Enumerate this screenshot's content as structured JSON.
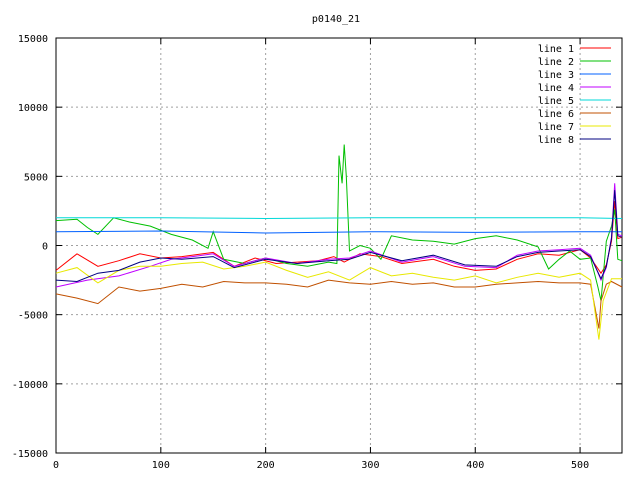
{
  "chart_data": {
    "type": "line",
    "title": "p0140_21",
    "xlabel": "",
    "ylabel": "",
    "xlim": [
      0,
      540
    ],
    "ylim": [
      -15000,
      15000
    ],
    "grid": true,
    "legend_position": "top-right",
    "xticks": [
      0,
      100,
      200,
      300,
      400,
      500
    ],
    "yticks": [
      -15000,
      -10000,
      -5000,
      0,
      5000,
      10000,
      15000
    ],
    "series": [
      {
        "name": "line 1",
        "color": "#ff0000",
        "points": [
          [
            0,
            -1800
          ],
          [
            20,
            -600
          ],
          [
            40,
            -1500
          ],
          [
            60,
            -1100
          ],
          [
            80,
            -600
          ],
          [
            100,
            -900
          ],
          [
            120,
            -800
          ],
          [
            150,
            -500
          ],
          [
            170,
            -1500
          ],
          [
            190,
            -900
          ],
          [
            210,
            -1300
          ],
          [
            230,
            -1200
          ],
          [
            250,
            -1100
          ],
          [
            265,
            -800
          ],
          [
            275,
            -1200
          ],
          [
            290,
            -600
          ],
          [
            310,
            -800
          ],
          [
            330,
            -1300
          ],
          [
            360,
            -1000
          ],
          [
            380,
            -1500
          ],
          [
            400,
            -1800
          ],
          [
            420,
            -1700
          ],
          [
            440,
            -1000
          ],
          [
            460,
            -600
          ],
          [
            480,
            -700
          ],
          [
            500,
            -300
          ],
          [
            510,
            -900
          ],
          [
            520,
            -2000
          ],
          [
            525,
            -1400
          ],
          [
            530,
            300
          ],
          [
            533,
            3200
          ],
          [
            536,
            500
          ],
          [
            540,
            600
          ]
        ]
      },
      {
        "name": "line 2",
        "color": "#00c000",
        "points": [
          [
            0,
            1800
          ],
          [
            20,
            1900
          ],
          [
            30,
            1300
          ],
          [
            40,
            800
          ],
          [
            55,
            2000
          ],
          [
            70,
            1700
          ],
          [
            90,
            1400
          ],
          [
            110,
            800
          ],
          [
            130,
            400
          ],
          [
            145,
            -200
          ],
          [
            150,
            1000
          ],
          [
            160,
            -1000
          ],
          [
            180,
            -1300
          ],
          [
            200,
            -900
          ],
          [
            220,
            -1300
          ],
          [
            240,
            -1500
          ],
          [
            260,
            -1200
          ],
          [
            268,
            -1300
          ],
          [
            270,
            6500
          ],
          [
            273,
            4500
          ],
          [
            275,
            7300
          ],
          [
            277,
            5000
          ],
          [
            280,
            -400
          ],
          [
            290,
            0
          ],
          [
            300,
            -200
          ],
          [
            310,
            -1000
          ],
          [
            320,
            700
          ],
          [
            340,
            400
          ],
          [
            360,
            300
          ],
          [
            380,
            100
          ],
          [
            400,
            500
          ],
          [
            420,
            700
          ],
          [
            440,
            400
          ],
          [
            460,
            -100
          ],
          [
            470,
            -1700
          ],
          [
            480,
            -1000
          ],
          [
            490,
            -400
          ],
          [
            500,
            -1000
          ],
          [
            510,
            -900
          ],
          [
            517,
            -3000
          ],
          [
            520,
            -4000
          ],
          [
            525,
            300
          ],
          [
            530,
            1400
          ],
          [
            533,
            2600
          ],
          [
            536,
            -1000
          ],
          [
            540,
            -1100
          ]
        ]
      },
      {
        "name": "line 3",
        "color": "#0060ff",
        "points": [
          [
            0,
            1000
          ],
          [
            100,
            1050
          ],
          [
            200,
            900
          ],
          [
            300,
            1000
          ],
          [
            400,
            950
          ],
          [
            500,
            1000
          ],
          [
            540,
            1000
          ]
        ]
      },
      {
        "name": "line 4",
        "color": "#c000ff",
        "points": [
          [
            0,
            -3000
          ],
          [
            30,
            -2500
          ],
          [
            60,
            -2200
          ],
          [
            90,
            -1500
          ],
          [
            110,
            -1000
          ],
          [
            130,
            -800
          ],
          [
            150,
            -600
          ],
          [
            170,
            -1500
          ],
          [
            200,
            -900
          ],
          [
            230,
            -1300
          ],
          [
            260,
            -1000
          ],
          [
            280,
            -900
          ],
          [
            300,
            -400
          ],
          [
            330,
            -1200
          ],
          [
            360,
            -800
          ],
          [
            390,
            -1500
          ],
          [
            420,
            -1600
          ],
          [
            440,
            -700
          ],
          [
            460,
            -400
          ],
          [
            480,
            -300
          ],
          [
            500,
            -200
          ],
          [
            510,
            -700
          ],
          [
            520,
            -2500
          ],
          [
            525,
            -1600
          ],
          [
            530,
            600
          ],
          [
            533,
            4500
          ],
          [
            536,
            800
          ],
          [
            540,
            700
          ]
        ]
      },
      {
        "name": "line 5",
        "color": "#00d8d8",
        "points": [
          [
            0,
            2000
          ],
          [
            100,
            2000
          ],
          [
            200,
            1950
          ],
          [
            300,
            2000
          ],
          [
            400,
            2000
          ],
          [
            500,
            2000
          ],
          [
            540,
            1950
          ]
        ]
      },
      {
        "name": "line 6",
        "color": "#c05000",
        "points": [
          [
            0,
            -3500
          ],
          [
            20,
            -3800
          ],
          [
            40,
            -4200
          ],
          [
            60,
            -3000
          ],
          [
            80,
            -3300
          ],
          [
            100,
            -3100
          ],
          [
            120,
            -2800
          ],
          [
            140,
            -3000
          ],
          [
            160,
            -2600
          ],
          [
            180,
            -2700
          ],
          [
            200,
            -2700
          ],
          [
            220,
            -2800
          ],
          [
            240,
            -3000
          ],
          [
            260,
            -2500
          ],
          [
            280,
            -2700
          ],
          [
            300,
            -2800
          ],
          [
            320,
            -2600
          ],
          [
            340,
            -2800
          ],
          [
            360,
            -2700
          ],
          [
            380,
            -3000
          ],
          [
            400,
            -3000
          ],
          [
            420,
            -2800
          ],
          [
            440,
            -2700
          ],
          [
            460,
            -2600
          ],
          [
            480,
            -2700
          ],
          [
            500,
            -2700
          ],
          [
            510,
            -2800
          ],
          [
            518,
            -6000
          ],
          [
            520,
            -4000
          ],
          [
            525,
            -2800
          ],
          [
            530,
            -2600
          ],
          [
            540,
            -3000
          ]
        ]
      },
      {
        "name": "line 7",
        "color": "#e8e800",
        "points": [
          [
            0,
            -2000
          ],
          [
            20,
            -1600
          ],
          [
            40,
            -2700
          ],
          [
            60,
            -1800
          ],
          [
            80,
            -1500
          ],
          [
            100,
            -1500
          ],
          [
            120,
            -1300
          ],
          [
            140,
            -1200
          ],
          [
            160,
            -1700
          ],
          [
            180,
            -1500
          ],
          [
            200,
            -1200
          ],
          [
            220,
            -1800
          ],
          [
            240,
            -2300
          ],
          [
            260,
            -1900
          ],
          [
            280,
            -2500
          ],
          [
            300,
            -1600
          ],
          [
            320,
            -2200
          ],
          [
            340,
            -2000
          ],
          [
            360,
            -2300
          ],
          [
            380,
            -2500
          ],
          [
            400,
            -2200
          ],
          [
            420,
            -2700
          ],
          [
            440,
            -2300
          ],
          [
            460,
            -2000
          ],
          [
            480,
            -2300
          ],
          [
            500,
            -2000
          ],
          [
            510,
            -2500
          ],
          [
            518,
            -6800
          ],
          [
            522,
            -4000
          ],
          [
            530,
            -2400
          ],
          [
            540,
            -2400
          ]
        ]
      },
      {
        "name": "line 8",
        "color": "#000080",
        "points": [
          [
            0,
            -2500
          ],
          [
            20,
            -2600
          ],
          [
            40,
            -2000
          ],
          [
            60,
            -1800
          ],
          [
            80,
            -1200
          ],
          [
            100,
            -900
          ],
          [
            120,
            -1000
          ],
          [
            150,
            -800
          ],
          [
            170,
            -1600
          ],
          [
            200,
            -1000
          ],
          [
            230,
            -1300
          ],
          [
            260,
            -1100
          ],
          [
            280,
            -1000
          ],
          [
            300,
            -500
          ],
          [
            330,
            -1100
          ],
          [
            360,
            -700
          ],
          [
            390,
            -1400
          ],
          [
            420,
            -1500
          ],
          [
            440,
            -800
          ],
          [
            460,
            -500
          ],
          [
            480,
            -400
          ],
          [
            500,
            -300
          ],
          [
            510,
            -800
          ],
          [
            520,
            -2400
          ],
          [
            525,
            -1500
          ],
          [
            530,
            500
          ],
          [
            533,
            4000
          ],
          [
            536,
            700
          ],
          [
            540,
            600
          ]
        ]
      }
    ]
  }
}
